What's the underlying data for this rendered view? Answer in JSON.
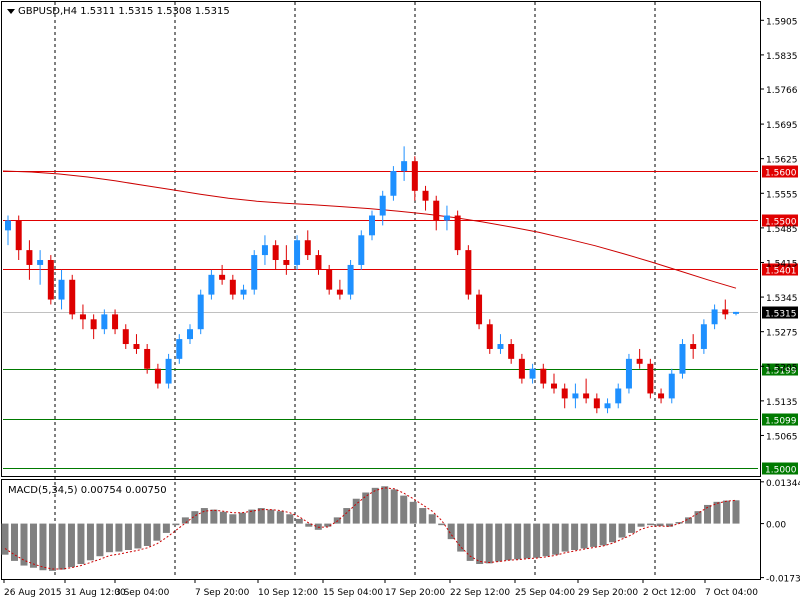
{
  "window": {
    "symbol_line": "GBPUSD,H4  1.5311 1.5315 1.5308 1.5315",
    "menu_icon": "triangle-down-icon"
  },
  "chart_data": [
    {
      "type": "candlestick",
      "symbol": "GBPUSD",
      "timeframe": "H4",
      "ohlc_header": {
        "open": 1.5311,
        "high": 1.5315,
        "low": 1.5308,
        "close": 1.5315
      },
      "ylim": [
        1.4985,
        1.594
      ],
      "y_ticks": [
        "1.5905",
        "1.5835",
        "1.5766",
        "1.5695",
        "1.5625",
        "1.5555",
        "1.5485",
        "1.5415",
        "1.5345",
        "1.5275",
        "1.5205",
        "1.5135",
        "1.5065"
      ],
      "x_ticks": [
        "26 Aug 2015",
        "31 Aug 12:00",
        "3 Sep 04:00",
        "7 Sep 20:00",
        "10 Sep 12:00",
        "15 Sep 04:00",
        "17 Sep 20:00",
        "22 Sep 12:00",
        "25 Sep 04:00",
        "29 Sep 20:00",
        "2 Oct 12:00",
        "7 Oct 04:00"
      ],
      "current_price": "1.5315",
      "horizontal_levels": [
        {
          "label": "1.5600",
          "value": 1.56,
          "color": "#e00000"
        },
        {
          "label": "1.5500",
          "value": 1.55,
          "color": "#e00000"
        },
        {
          "label": "1.5401",
          "value": 1.5401,
          "color": "#e00000"
        },
        {
          "label": "1.5199",
          "value": 1.5199,
          "color": "#007a00"
        },
        {
          "label": "1.5099",
          "value": 1.5099,
          "color": "#007a00"
        },
        {
          "label": "1.5000",
          "value": 1.5,
          "color": "#007a00"
        }
      ],
      "moving_average": {
        "color": "#cc0000",
        "values": [
          1.56,
          1.5598,
          1.5594,
          1.5588,
          1.558,
          1.5571,
          1.5562,
          1.5553,
          1.5545,
          1.5539,
          1.5535,
          1.5532,
          1.5528,
          1.5524,
          1.5519,
          1.5513,
          1.5506,
          1.5497,
          1.5487,
          1.5476,
          1.5463,
          1.5449,
          1.5433,
          1.5416,
          1.5398,
          1.538,
          1.5363
        ]
      },
      "candles": [
        [
          1.548,
          1.551,
          1.545,
          1.55
        ],
        [
          1.55,
          1.551,
          1.542,
          1.544
        ],
        [
          1.544,
          1.546,
          1.538,
          1.541
        ],
        [
          1.541,
          1.544,
          1.537,
          1.542
        ],
        [
          1.542,
          1.543,
          1.533,
          1.534
        ],
        [
          1.534,
          1.54,
          1.532,
          1.538
        ],
        [
          1.538,
          1.539,
          1.53,
          1.531
        ],
        [
          1.531,
          1.533,
          1.528,
          1.53
        ],
        [
          1.53,
          1.531,
          1.526,
          1.528
        ],
        [
          1.528,
          1.532,
          1.527,
          1.531
        ],
        [
          1.531,
          1.532,
          1.527,
          1.528
        ],
        [
          1.528,
          1.529,
          1.524,
          1.525
        ],
        [
          1.525,
          1.527,
          1.523,
          1.524
        ],
        [
          1.524,
          1.525,
          1.519,
          1.52
        ],
        [
          1.52,
          1.521,
          1.516,
          1.517
        ],
        [
          1.517,
          1.523,
          1.516,
          1.522
        ],
        [
          1.522,
          1.527,
          1.521,
          1.526
        ],
        [
          1.526,
          1.529,
          1.525,
          1.528
        ],
        [
          1.528,
          1.536,
          1.527,
          1.535
        ],
        [
          1.535,
          1.54,
          1.534,
          1.539
        ],
        [
          1.539,
          1.541,
          1.537,
          1.538
        ],
        [
          1.538,
          1.539,
          1.534,
          1.535
        ],
        [
          1.535,
          1.537,
          1.534,
          1.536
        ],
        [
          1.536,
          1.544,
          1.535,
          1.543
        ],
        [
          1.543,
          1.547,
          1.541,
          1.545
        ],
        [
          1.545,
          1.546,
          1.54,
          1.542
        ],
        [
          1.542,
          1.545,
          1.539,
          1.541
        ],
        [
          1.541,
          1.547,
          1.54,
          1.546
        ],
        [
          1.546,
          1.548,
          1.542,
          1.543
        ],
        [
          1.543,
          1.544,
          1.539,
          1.54
        ],
        [
          1.54,
          1.541,
          1.535,
          1.536
        ],
        [
          1.536,
          1.538,
          1.534,
          1.535
        ],
        [
          1.535,
          1.542,
          1.534,
          1.541
        ],
        [
          1.541,
          1.548,
          1.54,
          1.547
        ],
        [
          1.547,
          1.552,
          1.546,
          1.551
        ],
        [
          1.551,
          1.556,
          1.549,
          1.555
        ],
        [
          1.555,
          1.561,
          1.554,
          1.56
        ],
        [
          1.56,
          1.565,
          1.558,
          1.562
        ],
        [
          1.562,
          1.563,
          1.554,
          1.556
        ],
        [
          1.556,
          1.557,
          1.552,
          1.554
        ],
        [
          1.554,
          1.555,
          1.548,
          1.55
        ],
        [
          1.55,
          1.553,
          1.548,
          1.551
        ],
        [
          1.551,
          1.552,
          1.543,
          1.544
        ],
        [
          1.544,
          1.545,
          1.534,
          1.535
        ],
        [
          1.535,
          1.536,
          1.528,
          1.529
        ],
        [
          1.529,
          1.53,
          1.523,
          1.524
        ],
        [
          1.524,
          1.527,
          1.523,
          1.525
        ],
        [
          1.525,
          1.526,
          1.521,
          1.522
        ],
        [
          1.522,
          1.523,
          1.517,
          1.518
        ],
        [
          1.518,
          1.521,
          1.517,
          1.52
        ],
        [
          1.52,
          1.521,
          1.516,
          1.517
        ],
        [
          1.517,
          1.519,
          1.515,
          1.516
        ],
        [
          1.516,
          1.517,
          1.512,
          1.514
        ],
        [
          1.514,
          1.517,
          1.512,
          1.515
        ],
        [
          1.515,
          1.518,
          1.513,
          1.514
        ],
        [
          1.514,
          1.515,
          1.511,
          1.512
        ],
        [
          1.512,
          1.514,
          1.511,
          1.513
        ],
        [
          1.513,
          1.517,
          1.512,
          1.516
        ],
        [
          1.516,
          1.523,
          1.515,
          1.522
        ],
        [
          1.522,
          1.524,
          1.52,
          1.521
        ],
        [
          1.521,
          1.522,
          1.514,
          1.515
        ],
        [
          1.515,
          1.516,
          1.513,
          1.514
        ],
        [
          1.514,
          1.52,
          1.513,
          1.519
        ],
        [
          1.519,
          1.526,
          1.518,
          1.525
        ],
        [
          1.525,
          1.527,
          1.522,
          1.524
        ],
        [
          1.524,
          1.53,
          1.523,
          1.529
        ],
        [
          1.529,
          1.533,
          1.528,
          1.532
        ],
        [
          1.532,
          1.534,
          1.53,
          1.531
        ],
        [
          1.5311,
          1.5315,
          1.5308,
          1.5315
        ]
      ]
    },
    {
      "type": "bar",
      "title": "MACD(5,34,5) 0.00754 0.00750",
      "ylim": [
        -0.0175,
        0.0137
      ],
      "y_ticks": [
        "0.01344",
        "0.00",
        "-0.01737"
      ],
      "histogram": [
        -0.01,
        -0.012,
        -0.0135,
        -0.0142,
        -0.015,
        -0.0152,
        -0.0148,
        -0.014,
        -0.013,
        -0.0118,
        -0.0105,
        -0.0092,
        -0.009,
        -0.0085,
        -0.008,
        -0.0072,
        -0.0055,
        -0.003,
        -0.0005,
        0.002,
        0.004,
        0.005,
        0.0045,
        0.0038,
        0.003,
        0.0035,
        0.0045,
        0.005,
        0.0045,
        0.004,
        0.003,
        0.0015,
        -0.001,
        -0.002,
        -0.001,
        0.002,
        0.005,
        0.008,
        0.01,
        0.0115,
        0.012,
        0.011,
        0.009,
        0.007,
        0.005,
        0.003,
        -0.0005,
        -0.005,
        -0.009,
        -0.012,
        -0.013,
        -0.0128,
        -0.0122,
        -0.0118,
        -0.0115,
        -0.0112,
        -0.011,
        -0.0105,
        -0.01,
        -0.009,
        -0.0085,
        -0.008,
        -0.0075,
        -0.007,
        -0.006,
        -0.0045,
        -0.003,
        -0.001,
        -0.0005,
        -0.0008,
        -0.001,
        0.0005,
        0.002,
        0.004,
        0.006,
        0.007,
        0.0074,
        0.0075
      ],
      "signal": [
        -0.008,
        -0.01,
        -0.0118,
        -0.013,
        -0.014,
        -0.0146,
        -0.0146,
        -0.0142,
        -0.0135,
        -0.0125,
        -0.0115,
        -0.0103,
        -0.0098,
        -0.0092,
        -0.0086,
        -0.0078,
        -0.0065,
        -0.0045,
        -0.0022,
        0.0002,
        0.0025,
        0.004,
        0.0043,
        0.004,
        0.0035,
        0.0035,
        0.004,
        0.0045,
        0.0045,
        0.0042,
        0.0035,
        0.0022,
        0.0002,
        -0.0012,
        -0.0011,
        0.0008,
        0.0035,
        0.0063,
        0.0088,
        0.0106,
        0.0115,
        0.0112,
        0.0098,
        0.008,
        0.006,
        0.004,
        0.001,
        -0.0035,
        -0.0075,
        -0.0105,
        -0.0122,
        -0.0125,
        -0.0122,
        -0.0118,
        -0.0116,
        -0.0113,
        -0.0111,
        -0.0107,
        -0.0102,
        -0.0094,
        -0.0088,
        -0.0082,
        -0.0077,
        -0.0072,
        -0.0063,
        -0.005,
        -0.0036,
        -0.0018,
        -0.0009,
        -0.0008,
        -0.0009,
        0.0,
        0.0015,
        0.0033,
        0.0052,
        0.0065,
        0.0072,
        0.0075
      ],
      "signal_color": "#cc0000",
      "bar_color": "#808080"
    }
  ]
}
